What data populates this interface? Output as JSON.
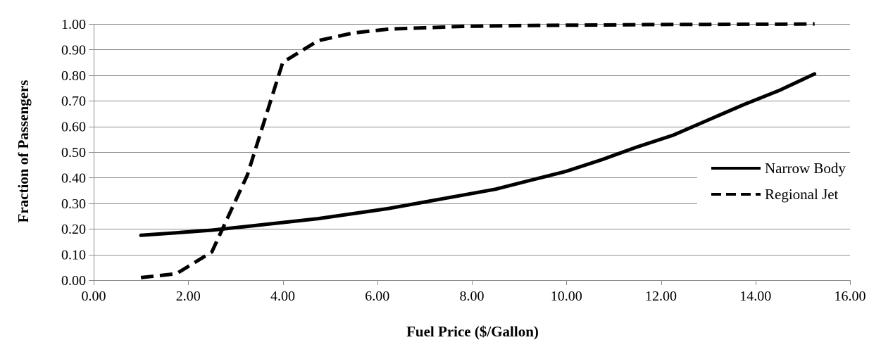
{
  "chart_data": {
    "type": "line",
    "title": "",
    "xlabel": "Fuel Price ($/Gallon)",
    "ylabel": "Fraction of Passengers",
    "xlim": [
      0,
      16
    ],
    "ylim": [
      0,
      1
    ],
    "x_ticks": [
      "0.00",
      "2.00",
      "4.00",
      "6.00",
      "8.00",
      "10.00",
      "12.00",
      "14.00",
      "16.00"
    ],
    "y_ticks": [
      "0.00",
      "0.10",
      "0.20",
      "0.30",
      "0.40",
      "0.50",
      "0.60",
      "0.70",
      "0.80",
      "0.90",
      "1.00"
    ],
    "grid": "horizontal",
    "legend_position": "right",
    "series": [
      {
        "name": "Narrow Body",
        "style": "solid",
        "color": "#000000",
        "x": [
          1.0,
          1.75,
          2.5,
          3.25,
          4.0,
          4.75,
          5.5,
          6.25,
          7.0,
          7.75,
          8.5,
          9.25,
          10.0,
          10.75,
          11.5,
          12.25,
          13.0,
          13.75,
          14.5,
          15.25
        ],
        "y": [
          0.175,
          0.185,
          0.195,
          0.21,
          0.225,
          0.24,
          0.26,
          0.28,
          0.305,
          0.33,
          0.355,
          0.39,
          0.425,
          0.47,
          0.52,
          0.565,
          0.625,
          0.685,
          0.74,
          0.805
        ]
      },
      {
        "name": "Regional Jet",
        "style": "dashed",
        "color": "#000000",
        "x": [
          1.0,
          1.75,
          2.5,
          3.25,
          4.0,
          4.75,
          5.5,
          6.25,
          7.0,
          7.75,
          8.5,
          9.25,
          10.0,
          10.75,
          11.5,
          12.25,
          13.0,
          13.75,
          14.5,
          15.25
        ],
        "y": [
          0.01,
          0.025,
          0.11,
          0.41,
          0.85,
          0.935,
          0.965,
          0.98,
          0.985,
          0.99,
          0.992,
          0.994,
          0.995,
          0.996,
          0.997,
          0.998,
          0.998,
          0.999,
          0.999,
          1.0
        ]
      }
    ]
  }
}
